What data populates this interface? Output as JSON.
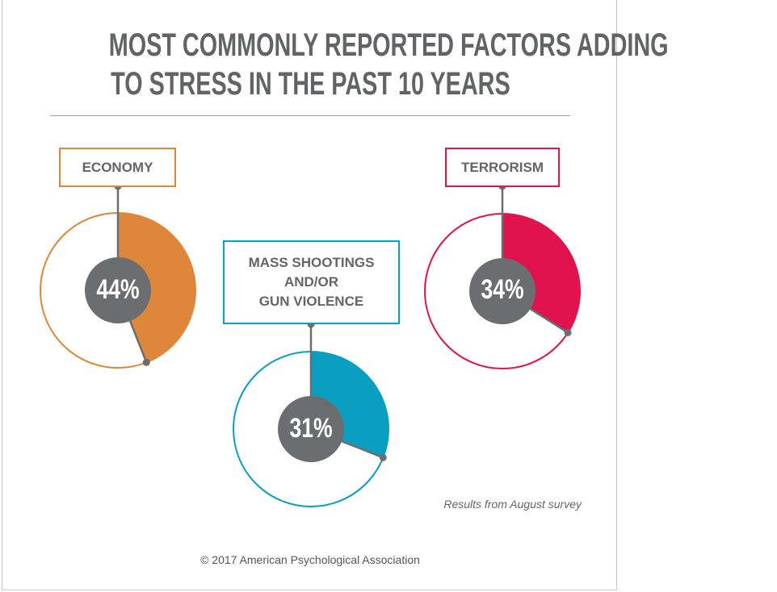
{
  "chart_data": {
    "type": "pie",
    "title": "MOST COMMONLY REPORTED FACTORS ADDING TO STRESS IN THE PAST 10 YEARS",
    "title_lines": [
      "MOST COMMONLY REPORTED FACTORS ADDING",
      "TO STRESS IN THE PAST 10 YEARS"
    ],
    "series": [
      {
        "name": "ECONOMY",
        "lines": [
          "ECONOMY"
        ],
        "value": 44,
        "label": "44%",
        "color": "#DE873B"
      },
      {
        "name": "MASS SHOOTINGS AND/OR GUN VIOLENCE",
        "lines": [
          "MASS SHOOTINGS",
          "AND/OR",
          "GUN VIOLENCE"
        ],
        "value": 31,
        "label": "31%",
        "color": "#0A9EC0"
      },
      {
        "name": "TERRORISM",
        "lines": [
          "TERRORISM"
        ],
        "value": 34,
        "label": "34%",
        "color": "#E0134E"
      }
    ],
    "unit": "%",
    "note": "Results from August survey"
  },
  "footer": {
    "copyright": "© 2017 American Psychological Association"
  },
  "colors": {
    "title": "#626366",
    "center": "#6C6D70"
  }
}
